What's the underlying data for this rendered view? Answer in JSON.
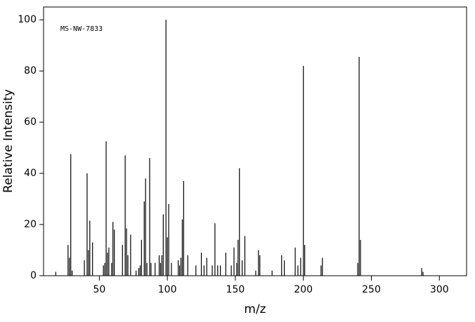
{
  "chart_data": {
    "type": "bar",
    "annotation": "MS-NW-7833",
    "xlabel": "m/z",
    "ylabel": "Relative Intensity",
    "x": [
      18,
      27,
      28,
      29,
      30,
      39,
      41,
      42,
      43,
      45,
      53,
      54,
      55,
      56,
      57,
      59,
      60,
      61,
      67,
      69,
      70,
      71,
      73,
      77,
      79,
      80,
      81,
      83,
      84,
      85,
      87,
      88,
      91,
      94,
      95,
      96,
      97,
      99,
      100,
      101,
      103,
      108,
      109,
      110,
      111,
      112,
      115,
      121,
      125,
      127,
      129,
      133,
      135,
      137,
      139,
      143,
      147,
      149,
      151,
      152,
      153,
      155,
      157,
      165,
      167,
      168,
      177,
      184,
      186,
      194,
      196,
      198,
      200,
      201,
      213,
      214,
      240,
      241,
      242,
      287,
      288
    ],
    "values": [
      1.5,
      12,
      7,
      47.5,
      2,
      6,
      40,
      10,
      21.5,
      13,
      4,
      5,
      52.5,
      9,
      11,
      5,
      21,
      18,
      12,
      47,
      18.5,
      8,
      16,
      2,
      3,
      4,
      14,
      29,
      38,
      5,
      46,
      5,
      5,
      8,
      5,
      8,
      24,
      100,
      15,
      28,
      5,
      6,
      4,
      7,
      22,
      37,
      8,
      4,
      9,
      4,
      7,
      4,
      20.5,
      4,
      4,
      9,
      4,
      11,
      5,
      14,
      42,
      6,
      15.5,
      2,
      10,
      8,
      2,
      8,
      6,
      11,
      4,
      7,
      82,
      12,
      4,
      7,
      5,
      85.5,
      14,
      3,
      1.5
    ],
    "color": "#000000",
    "xlim": [
      9,
      320
    ],
    "ylim": [
      0,
      105
    ],
    "xticks": [
      50,
      100,
      150,
      200,
      250,
      300
    ],
    "yticks": [
      0,
      20,
      40,
      60,
      80,
      100
    ]
  }
}
